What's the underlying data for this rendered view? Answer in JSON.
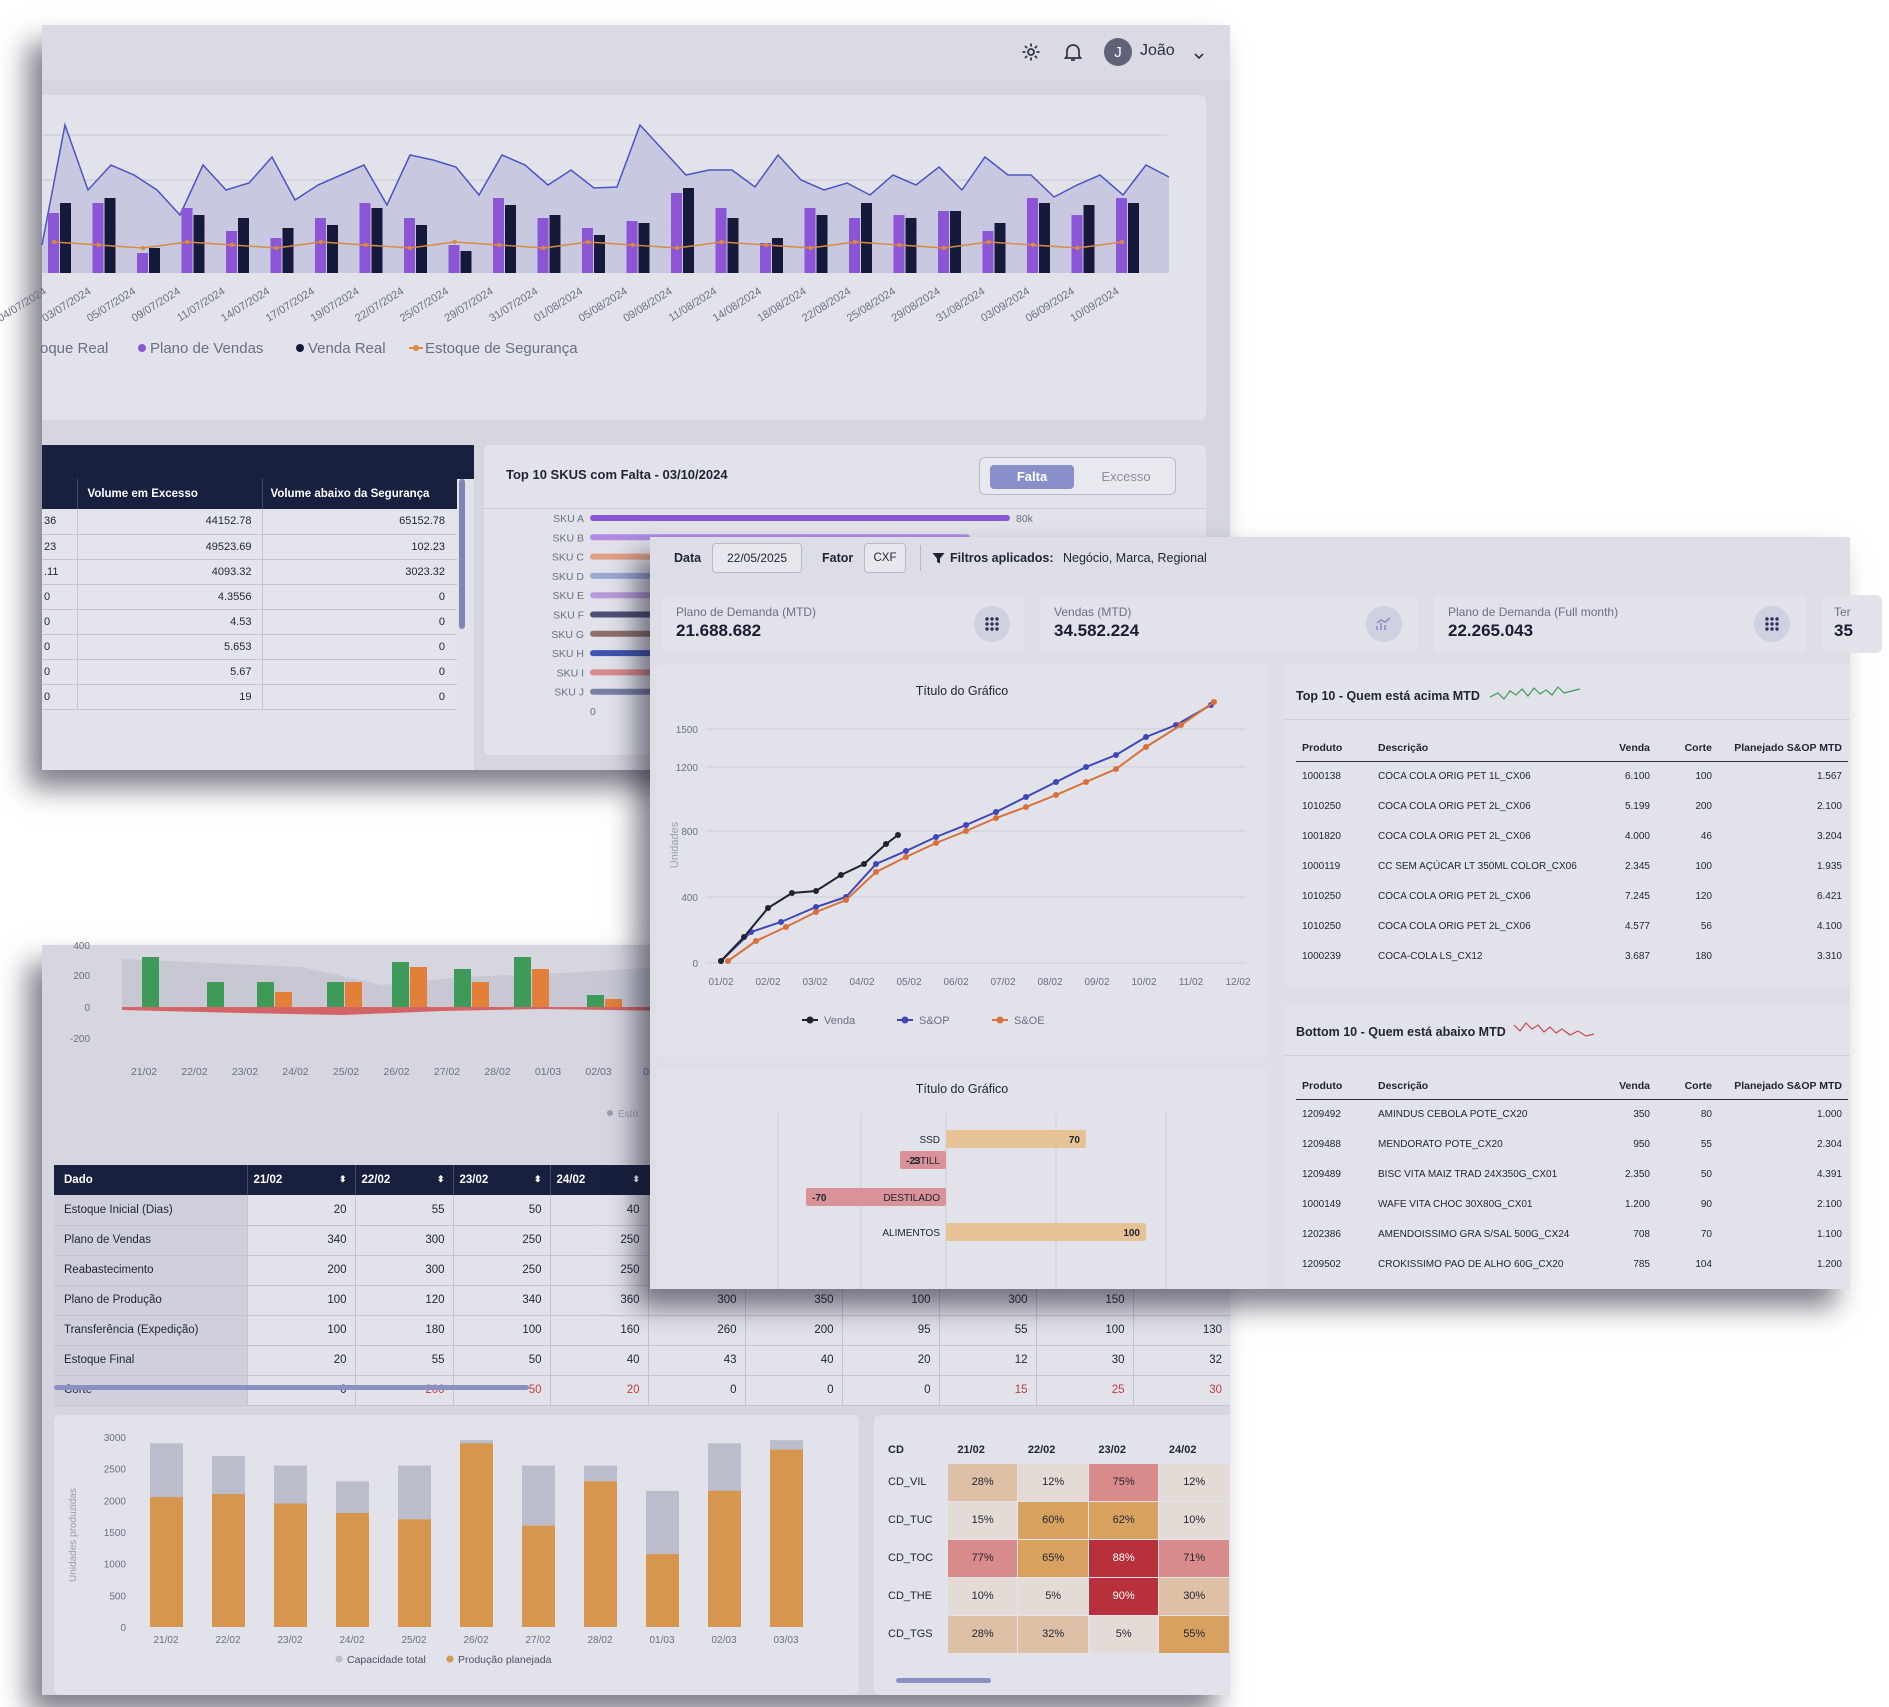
{
  "header": {
    "user_initial": "J",
    "user_name": "João"
  },
  "panel1": {
    "chart": {
      "dates": [
        "04/07/2024",
        "03/07/2024",
        "05/07/2024",
        "09/07/2024",
        "11/07/2024",
        "14/07/2024",
        "17/07/2024",
        "19/07/2024",
        "22/07/2024",
        "25/07/2024",
        "29/07/2024",
        "31/07/2024",
        "01/08/2024",
        "05/08/2024",
        "09/08/2024",
        "11/08/2024",
        "14/08/2024",
        "18/08/2024",
        "22/08/2024",
        "25/08/2024",
        "29/08/2024",
        "31/08/2024",
        "03/09/2024",
        "06/09/2024",
        "10/09/2024"
      ],
      "legend": [
        "oque Real",
        "Plano de Vendas",
        "Venda Real",
        "Estoque de Segurança"
      ]
    },
    "table": {
      "headers": [
        "Volume em Excesso",
        "Volume abaixo da Segurança"
      ],
      "rows": [
        [
          "36",
          "44152.78",
          "65152.78"
        ],
        [
          "23",
          "49523.69",
          "102.23"
        ],
        [
          ".11",
          "4093.32",
          "3023.32"
        ],
        [
          "0",
          "4.3556",
          "0"
        ],
        [
          "0",
          "4.53",
          "0"
        ],
        [
          "0",
          "5.653",
          "0"
        ],
        [
          "0",
          "5.67",
          "0"
        ],
        [
          "0",
          "19",
          "0"
        ]
      ]
    },
    "topskus": {
      "title": "Top 10 SKUS com Falta - 03/10/2024",
      "toggle": [
        "Falta",
        "Excesso"
      ],
      "skus": [
        "SKU A",
        "SKU B",
        "SKU C",
        "SKU D",
        "SKU E",
        "SKU F",
        "SKU G",
        "SKU H",
        "SKU I",
        "SKU J"
      ],
      "first_value_label": "80k",
      "axis_zero": "0"
    }
  },
  "panel2": {
    "chart": {
      "y_ticks": [
        "400",
        "200",
        "0",
        "-200"
      ],
      "dates": [
        "21/02",
        "22/02",
        "23/02",
        "24/02",
        "25/02",
        "26/02",
        "27/02",
        "28/02",
        "01/03",
        "02/03",
        "03"
      ],
      "legend_partial": "Esto"
    },
    "table": {
      "headers": [
        "Dado",
        "21/02",
        "22/02",
        "23/02",
        "24/02"
      ],
      "rows": [
        {
          "label": "Estoque Inicial (Dias)",
          "values": [
            "20",
            "55",
            "50",
            "40"
          ],
          "tail": []
        },
        {
          "label": "Plano de Vendas",
          "values": [
            "340",
            "300",
            "250",
            "250"
          ],
          "tail": []
        },
        {
          "label": "Reabastecimento",
          "values": [
            "200",
            "300",
            "250",
            "250"
          ],
          "tail": []
        },
        {
          "label": "Plano de Produção",
          "values": [
            "100",
            "120",
            "340",
            "360"
          ],
          "tail": [
            "300",
            "350",
            "100",
            "300",
            "150"
          ]
        },
        {
          "label": "Transferência (Expedição)",
          "values": [
            "100",
            "180",
            "100",
            "160"
          ],
          "tail": [
            "260",
            "200",
            "95",
            "55",
            "100",
            "130"
          ]
        },
        {
          "label": "Estoque Final",
          "values": [
            "20",
            "55",
            "50",
            "40"
          ],
          "tail": [
            "43",
            "40",
            "20",
            "12",
            "30",
            "32"
          ]
        },
        {
          "label": "Corte",
          "values": [
            "0",
            "200",
            "50",
            "20"
          ],
          "tail": [
            "0",
            "0",
            "0",
            "15",
            "25",
            "30"
          ]
        }
      ]
    },
    "prodchart": {
      "ylabel": "Unidades produzidas",
      "y_ticks": [
        "3000",
        "2500",
        "2000",
        "1500",
        "1000",
        "500",
        "0"
      ],
      "categories": [
        "21/02",
        "22/02",
        "23/02",
        "24/02",
        "25/02",
        "26/02",
        "27/02",
        "28/02",
        "01/03",
        "02/03",
        "03/03"
      ],
      "legend": [
        "Capacidade total",
        "Produção planejada"
      ]
    },
    "heatmap": {
      "headers": [
        "CD",
        "21/02",
        "22/02",
        "23/02",
        "24/02"
      ],
      "rows": [
        {
          "cd": "CD_VIL",
          "vals": [
            "28%",
            "12%",
            "75%",
            "12%"
          ]
        },
        {
          "cd": "CD_TUC",
          "vals": [
            "15%",
            "60%",
            "62%",
            "10%"
          ]
        },
        {
          "cd": "CD_TOC",
          "vals": [
            "77%",
            "65%",
            "88%",
            "71%"
          ]
        },
        {
          "cd": "CD_THE",
          "vals": [
            "10%",
            "5%",
            "90%",
            "30%"
          ]
        },
        {
          "cd": "CD_TGS",
          "vals": [
            "28%",
            "32%",
            "5%",
            "55%"
          ]
        }
      ]
    }
  },
  "panel3": {
    "filters": {
      "data_label": "Data",
      "data_value": "22/05/2025",
      "fator_label": "Fator",
      "fator_value": "CXF",
      "applied_label": "Filtros aplicados:",
      "applied_value": "Negócio, Marca, Regional"
    },
    "kpis": [
      {
        "label": "Plano de Demanda (MTD)",
        "value": "21.688.682"
      },
      {
        "label": "Vendas (MTD)",
        "value": "34.582.224"
      },
      {
        "label": "Plano de Demanda (Full month)",
        "value": "22.265.043"
      },
      {
        "label": "Ter",
        "value": "35"
      }
    ],
    "linechart": {
      "title": "Título do Gráfico",
      "ylabel": "Unidades",
      "y_ticks": [
        "1500",
        "1200",
        "800",
        "400",
        "0"
      ],
      "x_ticks": [
        "01/02",
        "02/02",
        "03/02",
        "04/02",
        "05/02",
        "06/02",
        "07/02",
        "08/02",
        "09/02",
        "10/02",
        "11/02",
        "12/02"
      ],
      "legend": [
        "Venda",
        "S&OP",
        "S&OE"
      ]
    },
    "barchart": {
      "title": "Título do Gráfico",
      "bars": [
        {
          "label": "SSD",
          "value": "70"
        },
        {
          "label": "STILL",
          "value": "-23"
        },
        {
          "label": "DESTILADO",
          "value": "-70"
        },
        {
          "label": "ALIMENTOS",
          "value": "100"
        }
      ]
    },
    "top10": {
      "title": "Top 10 - Quem está acima MTD",
      "headers": [
        "Produto",
        "Descrição",
        "Venda",
        "Corte",
        "Planejado S&OP MTD"
      ],
      "rows": [
        [
          "1000138",
          "COCA COLA ORIG PET 1L_CX06",
          "6.100",
          "100",
          "1.567"
        ],
        [
          "1010250",
          "COCA COLA ORIG PET 2L_CX06",
          "5.199",
          "200",
          "2.100"
        ],
        [
          "1001820",
          "COCA COLA ORIG PET 2L_CX06",
          "4.000",
          "46",
          "3.204"
        ],
        [
          "1000119",
          "CC SEM AÇÚCAR LT 350ML COLOR_CX06",
          "2.345",
          "100",
          "1.935"
        ],
        [
          "1010250",
          "COCA COLA ORIG PET 2L_CX06",
          "7.245",
          "120",
          "6.421"
        ],
        [
          "1010250",
          "COCA COLA ORIG PET 2L_CX06",
          "4.577",
          "56",
          "4.100"
        ],
        [
          "1000239",
          "COCA-COLA LS_CX12",
          "3.687",
          "180",
          "3.310"
        ]
      ]
    },
    "bottom10": {
      "title": "Bottom 10 - Quem está abaixo MTD",
      "headers": [
        "Produto",
        "Descrição",
        "Venda",
        "Corte",
        "Planejado S&OP MTD"
      ],
      "rows": [
        [
          "1209492",
          "AMINDUS CEBOLA POTE_CX20",
          "350",
          "80",
          "1.000"
        ],
        [
          "1209488",
          "MENDORATO POTE_CX20",
          "950",
          "55",
          "2.304"
        ],
        [
          "1209489",
          "BISC VITA MAIZ TRAD 24X350G_CX01",
          "2.350",
          "50",
          "4.391"
        ],
        [
          "1000149",
          "WAFE VITA CHOC 30X80G_CX01",
          "1.200",
          "90",
          "2.100"
        ],
        [
          "1202386",
          "AMENDOISSIMO GRA S/SAL 500G_CX24",
          "708",
          "70",
          "1.100"
        ],
        [
          "1209502",
          "CROKISSIMO PAO DE ALHO 60G_CX20",
          "785",
          "104",
          "1.200"
        ]
      ]
    }
  }
}
